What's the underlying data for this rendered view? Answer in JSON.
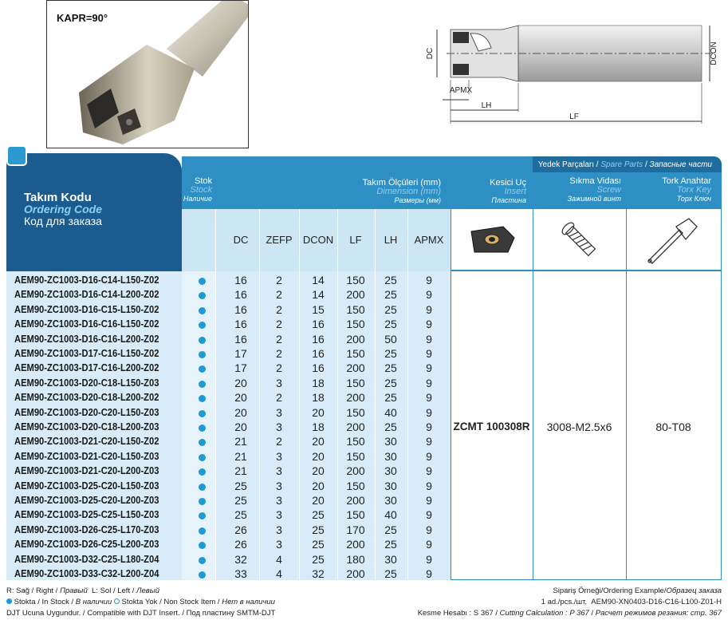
{
  "photo": {
    "label": "KAPR=90°"
  },
  "drawing": {
    "labels": {
      "dc": "DC",
      "dcon": "DCON",
      "apmx": "APMX",
      "lh": "LH",
      "lf": "LF"
    }
  },
  "table": {
    "code_header": [
      "Takım Kodu",
      "Ordering Code",
      "Код для заказа"
    ],
    "stock_header": [
      "Stok",
      "Stock",
      "Наличие"
    ],
    "dims_header": [
      "Takım Ölçüleri (mm)",
      "Dimension (mm)",
      "Размеры (мм)"
    ],
    "insert_header": [
      "Kesici Uç",
      "Insert",
      "Пластина"
    ],
    "spare_header": [
      "Yedek Parçaları / ",
      "Spare Parts",
      " / ",
      "Запасные части"
    ],
    "screw_header": [
      "Sıkma Vidası",
      "Screw",
      "Зажимной винт"
    ],
    "key_header": [
      "Tork Anahtar",
      "Torx Key",
      "Торх Ключ"
    ],
    "columns": [
      "DC",
      "ZEFP",
      "DCON",
      "LF",
      "LH",
      "APMX"
    ],
    "rows": [
      [
        "AEM90-ZC1003-D16-C14-L150-Z02",
        16,
        2,
        14,
        150,
        25,
        9
      ],
      [
        "AEM90-ZC1003-D16-C14-L200-Z02",
        16,
        2,
        14,
        200,
        25,
        9
      ],
      [
        "AEM90-ZC1003-D16-C15-L150-Z02",
        16,
        2,
        15,
        150,
        25,
        9
      ],
      [
        "AEM90-ZC1003-D16-C16-L150-Z02",
        16,
        2,
        16,
        150,
        25,
        9
      ],
      [
        "AEM90-ZC1003-D16-C16-L200-Z02",
        16,
        2,
        16,
        200,
        50,
        9
      ],
      [
        "AEM90-ZC1003-D17-C16-L150-Z02",
        17,
        2,
        16,
        150,
        25,
        9
      ],
      [
        "AEM90-ZC1003-D17-C16-L200-Z02",
        17,
        2,
        16,
        200,
        25,
        9
      ],
      [
        "AEM90-ZC1003-D20-C18-L150-Z03",
        20,
        3,
        18,
        150,
        25,
        9
      ],
      [
        "AEM90-ZC1003-D20-C18-L200-Z02",
        20,
        2,
        18,
        200,
        25,
        9
      ],
      [
        "AEM90-ZC1003-D20-C20-L150-Z03",
        20,
        3,
        20,
        150,
        40,
        9
      ],
      [
        "AEM90-ZC1003-D20-C18-L200-Z03",
        20,
        3,
        18,
        200,
        25,
        9
      ],
      [
        "AEM90-ZC1003-D21-C20-L150-Z02",
        21,
        2,
        20,
        150,
        30,
        9
      ],
      [
        "AEM90-ZC1003-D21-C20-L150-Z03",
        21,
        3,
        20,
        150,
        30,
        9
      ],
      [
        "AEM90-ZC1003-D21-C20-L200-Z03",
        21,
        3,
        20,
        200,
        30,
        9
      ],
      [
        "AEM90-ZC1003-D25-C20-L150-Z03",
        25,
        3,
        20,
        150,
        30,
        9
      ],
      [
        "AEM90-ZC1003-D25-C20-L200-Z03",
        25,
        3,
        20,
        200,
        30,
        9
      ],
      [
        "AEM90-ZC1003-D25-C25-L150-Z03",
        25,
        3,
        25,
        150,
        40,
        9
      ],
      [
        "AEM90-ZC1003-D26-C25-L170-Z03",
        26,
        3,
        25,
        170,
        25,
        9
      ],
      [
        "AEM90-ZC1003-D26-C25-L200-Z03",
        26,
        3,
        25,
        200,
        25,
        9
      ],
      [
        "AEM90-ZC1003-D32-C25-L180-Z04",
        32,
        4,
        25,
        180,
        30,
        9
      ],
      [
        "AEM90-ZC1003-D33-C32-L200-Z04",
        33,
        4,
        32,
        200,
        25,
        9
      ]
    ],
    "insert": "ZCMT 100308R",
    "screw": "3008-M2.5x6",
    "key": "80-T08"
  },
  "footer": {
    "left": [
      [
        "R: Sağ / Right / ",
        "Правый",
        "  L: Sol / Left / ",
        "Левый"
      ],
      [
        "Stokta / In Stock / ",
        "В наличии",
        "Stokta Yok / Non Stock Item / ",
        "Нет в наличии"
      ],
      [
        "DJT Ucuna Uygundur. / Compatible with DJT Insert. / Под пластину SMTM-DJT"
      ]
    ],
    "right": [
      [
        "Sipariş Örneği/Ordering Example/",
        "Образец заказа"
      ],
      [
        "1 ad./pcs./шт.  AEM90-XN0403-D16-C16-L100-Z01-H"
      ],
      [
        "Kesme Hesabı : S 367 / ",
        "Cutting Calculation : P 367",
        " / ",
        "Расчет режимов резания: стр. 367"
      ]
    ]
  }
}
